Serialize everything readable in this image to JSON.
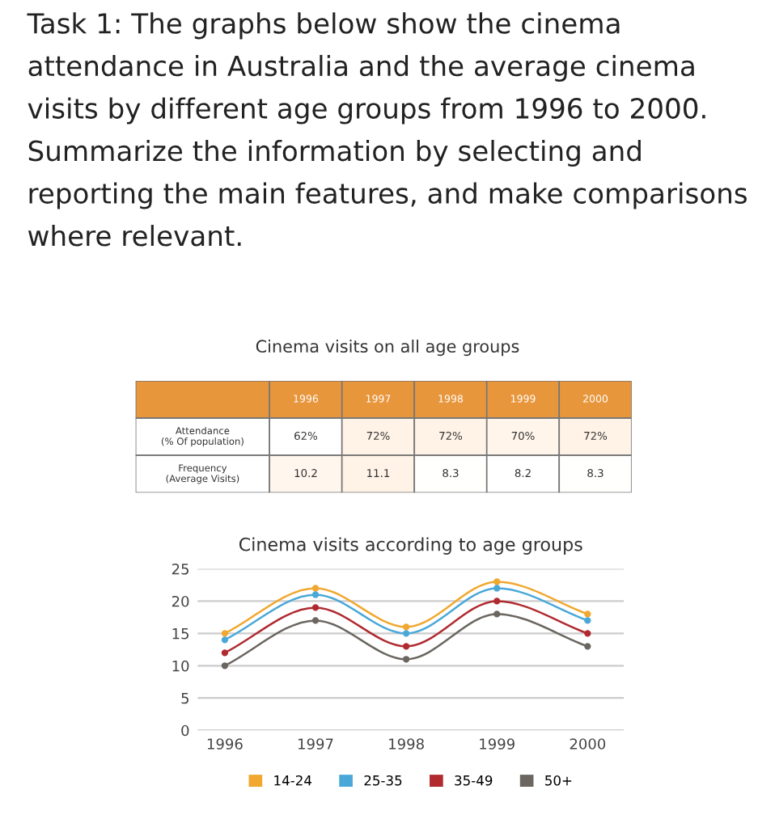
{
  "chart_data": [
    {
      "type": "other",
      "annotations": [
        "Task 1: The graphs below show the cinema attendance in Australia and the average cinema visits by different age groups from 1996 to 2000. Summarize the information by selecting and reporting the main features, and make comparisons where relevant."
      ]
    },
    {
      "type": "heatmap",
      "title": "Cinema visits on all age groups",
      "color": "#e8963c",
      "categories": [
        "1996",
        "1997",
        "1998",
        "1999",
        "2000"
      ],
      "y_categories": [
        "Attendance\n(% Of population)",
        "Frequency\n(Average Visits)"
      ],
      "cells": [
        [
          62,
          72,
          72,
          70,
          72
        ],
        [
          10.2,
          11.1,
          8.3,
          8.2,
          8.3
        ]
      ],
      "cell_labels": [
        [
          "62%",
          "72%",
          "72%",
          "70%",
          "72%"
        ],
        [
          "10.2",
          "11.1",
          "8.3",
          "8.2",
          "8.3"
        ]
      ]
    },
    {
      "type": "line",
      "title": "Cinema visits according to age groups",
      "categories": [
        "1996",
        "1997",
        "1998",
        "1999",
        "2000"
      ],
      "ylim": [
        0,
        25
      ],
      "yticks": [
        0,
        5,
        10,
        15,
        20,
        25
      ],
      "grid": "y",
      "legend": "bottom",
      "marker": "circle",
      "line_style": "solid",
      "series": [
        {
          "name": "14-24",
          "color": "#f0a830",
          "values": [
            15,
            22,
            16,
            23,
            18
          ]
        },
        {
          "name": "25-35",
          "color": "#4aa8d8",
          "values": [
            14,
            21,
            15,
            22,
            17
          ]
        },
        {
          "name": "35-49",
          "color": "#b02a30",
          "values": [
            12,
            19,
            13,
            20,
            15
          ]
        },
        {
          "name": "50+",
          "color": "#6b6660",
          "values": [
            10,
            17,
            11,
            18,
            13
          ]
        }
      ]
    }
  ]
}
